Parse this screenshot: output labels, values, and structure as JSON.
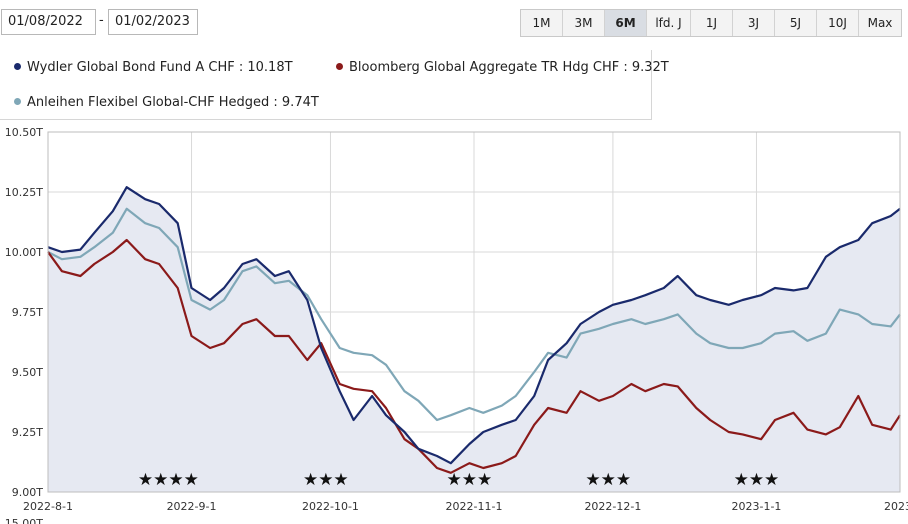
{
  "date_range": {
    "from": "01/08/2022",
    "separator": "-",
    "to": "01/02/2023"
  },
  "range_buttons": [
    {
      "label": "1M",
      "active": false
    },
    {
      "label": "3M",
      "active": false
    },
    {
      "label": "6M",
      "active": true
    },
    {
      "label": "lfd. J",
      "active": false
    },
    {
      "label": "1J",
      "active": false
    },
    {
      "label": "3J",
      "active": false
    },
    {
      "label": "5J",
      "active": false
    },
    {
      "label": "10J",
      "active": false
    },
    {
      "label": "Max",
      "active": false
    }
  ],
  "legend": [
    {
      "label": "Wydler Global Bond Fund A CHF : 10.18T",
      "color": "#1a2a6c"
    },
    {
      "label": "Bloomberg Global Aggregate TR Hdg CHF : 9.32T",
      "color": "#8b1a1a"
    },
    {
      "label": "Anleihen Flexibel Global-CHF Hedged : 9.74T",
      "color": "#7fa7b7"
    }
  ],
  "chart_data": {
    "type": "line",
    "x_start": "2022-08-01",
    "x_end": "2023-02-01",
    "x_ticks": [
      {
        "date": "2022-08-01",
        "label": "2022-8-1"
      },
      {
        "date": "2022-09-01",
        "label": "2022-9-1"
      },
      {
        "date": "2022-10-01",
        "label": "2022-10-1"
      },
      {
        "date": "2022-11-01",
        "label": "2022-11-1"
      },
      {
        "date": "2022-12-01",
        "label": "2022-12-1"
      },
      {
        "date": "2023-01-01",
        "label": "2023-1-1"
      },
      {
        "date": "2023-02-01",
        "label": "2023-"
      }
    ],
    "y_ticks": [
      {
        "value": 9.0,
        "label": "9.00T"
      },
      {
        "value": 9.25,
        "label": "9.25T"
      },
      {
        "value": 9.5,
        "label": "9.50T"
      },
      {
        "value": 9.75,
        "label": "9.75T"
      },
      {
        "value": 10.0,
        "label": "10.00T"
      },
      {
        "value": 10.25,
        "label": "10.25T"
      },
      {
        "value": 10.5,
        "label": "10.50T"
      }
    ],
    "ylim": [
      9.0,
      10.5
    ],
    "cut_off_label": "15.00T",
    "grid": true,
    "stars": [
      {
        "date": "2022-08-27",
        "label": "★★★★"
      },
      {
        "date": "2022-09-30",
        "label": "★★★"
      },
      {
        "date": "2022-10-31",
        "label": "★★★"
      },
      {
        "date": "2022-11-30",
        "label": "★★★"
      },
      {
        "date": "2023-01-01",
        "label": "★★★"
      }
    ],
    "series": [
      {
        "name": "Wydler Global Bond Fund A CHF",
        "color": "#1a2a6c",
        "area": true,
        "points": [
          [
            "2022-08-01",
            10.02
          ],
          [
            "2022-08-04",
            10.0
          ],
          [
            "2022-08-08",
            10.01
          ],
          [
            "2022-08-11",
            10.08
          ],
          [
            "2022-08-15",
            10.17
          ],
          [
            "2022-08-18",
            10.27
          ],
          [
            "2022-08-22",
            10.22
          ],
          [
            "2022-08-25",
            10.2
          ],
          [
            "2022-08-29",
            10.12
          ],
          [
            "2022-09-01",
            9.85
          ],
          [
            "2022-09-05",
            9.8
          ],
          [
            "2022-09-08",
            9.85
          ],
          [
            "2022-09-12",
            9.95
          ],
          [
            "2022-09-15",
            9.97
          ],
          [
            "2022-09-19",
            9.9
          ],
          [
            "2022-09-22",
            9.92
          ],
          [
            "2022-09-26",
            9.8
          ],
          [
            "2022-09-29",
            9.6
          ],
          [
            "2022-10-03",
            9.42
          ],
          [
            "2022-10-06",
            9.3
          ],
          [
            "2022-10-10",
            9.4
          ],
          [
            "2022-10-13",
            9.32
          ],
          [
            "2022-10-17",
            9.25
          ],
          [
            "2022-10-20",
            9.18
          ],
          [
            "2022-10-24",
            9.15
          ],
          [
            "2022-10-27",
            9.12
          ],
          [
            "2022-10-31",
            9.2
          ],
          [
            "2022-11-03",
            9.25
          ],
          [
            "2022-11-07",
            9.28
          ],
          [
            "2022-11-10",
            9.3
          ],
          [
            "2022-11-14",
            9.4
          ],
          [
            "2022-11-17",
            9.55
          ],
          [
            "2022-11-21",
            9.62
          ],
          [
            "2022-11-24",
            9.7
          ],
          [
            "2022-11-28",
            9.75
          ],
          [
            "2022-12-01",
            9.78
          ],
          [
            "2022-12-05",
            9.8
          ],
          [
            "2022-12-08",
            9.82
          ],
          [
            "2022-12-12",
            9.85
          ],
          [
            "2022-12-15",
            9.9
          ],
          [
            "2022-12-19",
            9.82
          ],
          [
            "2022-12-22",
            9.8
          ],
          [
            "2022-12-26",
            9.78
          ],
          [
            "2022-12-29",
            9.8
          ],
          [
            "2023-01-02",
            9.82
          ],
          [
            "2023-01-05",
            9.85
          ],
          [
            "2023-01-09",
            9.84
          ],
          [
            "2023-01-12",
            9.85
          ],
          [
            "2023-01-16",
            9.98
          ],
          [
            "2023-01-19",
            10.02
          ],
          [
            "2023-01-23",
            10.05
          ],
          [
            "2023-01-26",
            10.12
          ],
          [
            "2023-01-30",
            10.15
          ],
          [
            "2023-02-01",
            10.18
          ]
        ]
      },
      {
        "name": "Bloomberg Global Aggregate TR Hdg CHF",
        "color": "#8b1a1a",
        "area": false,
        "points": [
          [
            "2022-08-01",
            10.0
          ],
          [
            "2022-08-04",
            9.92
          ],
          [
            "2022-08-08",
            9.9
          ],
          [
            "2022-08-11",
            9.95
          ],
          [
            "2022-08-15",
            10.0
          ],
          [
            "2022-08-18",
            10.05
          ],
          [
            "2022-08-22",
            9.97
          ],
          [
            "2022-08-25",
            9.95
          ],
          [
            "2022-08-29",
            9.85
          ],
          [
            "2022-09-01",
            9.65
          ],
          [
            "2022-09-05",
            9.6
          ],
          [
            "2022-09-08",
            9.62
          ],
          [
            "2022-09-12",
            9.7
          ],
          [
            "2022-09-15",
            9.72
          ],
          [
            "2022-09-19",
            9.65
          ],
          [
            "2022-09-22",
            9.65
          ],
          [
            "2022-09-26",
            9.55
          ],
          [
            "2022-09-29",
            9.62
          ],
          [
            "2022-10-03",
            9.45
          ],
          [
            "2022-10-06",
            9.43
          ],
          [
            "2022-10-10",
            9.42
          ],
          [
            "2022-10-13",
            9.35
          ],
          [
            "2022-10-17",
            9.22
          ],
          [
            "2022-10-20",
            9.18
          ],
          [
            "2022-10-24",
            9.1
          ],
          [
            "2022-10-27",
            9.08
          ],
          [
            "2022-10-31",
            9.12
          ],
          [
            "2022-11-03",
            9.1
          ],
          [
            "2022-11-07",
            9.12
          ],
          [
            "2022-11-10",
            9.15
          ],
          [
            "2022-11-14",
            9.28
          ],
          [
            "2022-11-17",
            9.35
          ],
          [
            "2022-11-21",
            9.33
          ],
          [
            "2022-11-24",
            9.42
          ],
          [
            "2022-11-28",
            9.38
          ],
          [
            "2022-12-01",
            9.4
          ],
          [
            "2022-12-05",
            9.45
          ],
          [
            "2022-12-08",
            9.42
          ],
          [
            "2022-12-12",
            9.45
          ],
          [
            "2022-12-15",
            9.44
          ],
          [
            "2022-12-19",
            9.35
          ],
          [
            "2022-12-22",
            9.3
          ],
          [
            "2022-12-26",
            9.25
          ],
          [
            "2022-12-29",
            9.24
          ],
          [
            "2023-01-02",
            9.22
          ],
          [
            "2023-01-05",
            9.3
          ],
          [
            "2023-01-09",
            9.33
          ],
          [
            "2023-01-12",
            9.26
          ],
          [
            "2023-01-16",
            9.24
          ],
          [
            "2023-01-19",
            9.27
          ],
          [
            "2023-01-23",
            9.4
          ],
          [
            "2023-01-26",
            9.28
          ],
          [
            "2023-01-30",
            9.26
          ],
          [
            "2023-02-01",
            9.32
          ]
        ]
      },
      {
        "name": "Anleihen Flexibel Global-CHF Hedged",
        "color": "#7fa7b7",
        "area": false,
        "points": [
          [
            "2022-08-01",
            10.0
          ],
          [
            "2022-08-04",
            9.97
          ],
          [
            "2022-08-08",
            9.98
          ],
          [
            "2022-08-11",
            10.02
          ],
          [
            "2022-08-15",
            10.08
          ],
          [
            "2022-08-18",
            10.18
          ],
          [
            "2022-08-22",
            10.12
          ],
          [
            "2022-08-25",
            10.1
          ],
          [
            "2022-08-29",
            10.02
          ],
          [
            "2022-09-01",
            9.8
          ],
          [
            "2022-09-05",
            9.76
          ],
          [
            "2022-09-08",
            9.8
          ],
          [
            "2022-09-12",
            9.92
          ],
          [
            "2022-09-15",
            9.94
          ],
          [
            "2022-09-19",
            9.87
          ],
          [
            "2022-09-22",
            9.88
          ],
          [
            "2022-09-26",
            9.82
          ],
          [
            "2022-09-29",
            9.72
          ],
          [
            "2022-10-03",
            9.6
          ],
          [
            "2022-10-06",
            9.58
          ],
          [
            "2022-10-10",
            9.57
          ],
          [
            "2022-10-13",
            9.53
          ],
          [
            "2022-10-17",
            9.42
          ],
          [
            "2022-10-20",
            9.38
          ],
          [
            "2022-10-24",
            9.3
          ],
          [
            "2022-10-27",
            9.32
          ],
          [
            "2022-10-31",
            9.35
          ],
          [
            "2022-11-03",
            9.33
          ],
          [
            "2022-11-07",
            9.36
          ],
          [
            "2022-11-10",
            9.4
          ],
          [
            "2022-11-14",
            9.5
          ],
          [
            "2022-11-17",
            9.58
          ],
          [
            "2022-11-21",
            9.56
          ],
          [
            "2022-11-24",
            9.66
          ],
          [
            "2022-11-28",
            9.68
          ],
          [
            "2022-12-01",
            9.7
          ],
          [
            "2022-12-05",
            9.72
          ],
          [
            "2022-12-08",
            9.7
          ],
          [
            "2022-12-12",
            9.72
          ],
          [
            "2022-12-15",
            9.74
          ],
          [
            "2022-12-19",
            9.66
          ],
          [
            "2022-12-22",
            9.62
          ],
          [
            "2022-12-26",
            9.6
          ],
          [
            "2022-12-29",
            9.6
          ],
          [
            "2023-01-02",
            9.62
          ],
          [
            "2023-01-05",
            9.66
          ],
          [
            "2023-01-09",
            9.67
          ],
          [
            "2023-01-12",
            9.63
          ],
          [
            "2023-01-16",
            9.66
          ],
          [
            "2023-01-19",
            9.76
          ],
          [
            "2023-01-23",
            9.74
          ],
          [
            "2023-01-26",
            9.7
          ],
          [
            "2023-01-30",
            9.69
          ],
          [
            "2023-02-01",
            9.74
          ]
        ]
      }
    ]
  }
}
